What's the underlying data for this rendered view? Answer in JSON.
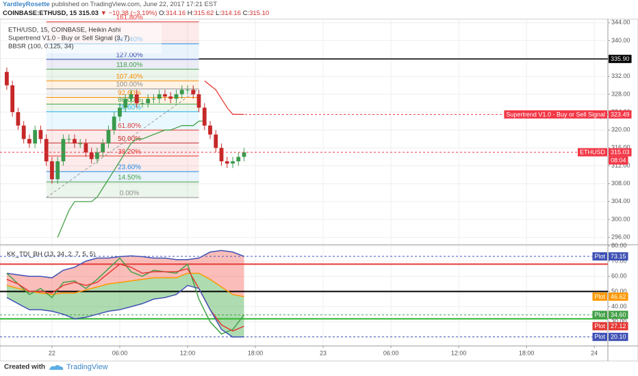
{
  "header": {
    "author": "YardleyRosette",
    "published": "published on TradingView.com, June 22, 2017 17:21 EST",
    "symbol": "COINBASE:ETHUSD, 15",
    "last": "315.03",
    "change": "▼ −10.38 (−3.19%)",
    "ohlc": [
      {
        "key": "O:",
        "value": "314.16"
      },
      {
        "key": "H:",
        "value": "315.62"
      },
      {
        "key": "L:",
        "value": "314.16"
      },
      {
        "key": "C:",
        "value": "315.10"
      }
    ]
  },
  "chart_data": [
    {
      "type": "candlestick",
      "legend": [
        "ETH/USD, 15, COINBASE, Heikin Ashi",
        "Supertrend V1.0 - Buy or Sell Signal (3, 7)",
        "BBSR (100, 0.125, 34)"
      ],
      "up_color": "#3a9a4c",
      "down_color": "#c62828",
      "x": [
        -4,
        -3.5,
        -3,
        -2.5,
        -2,
        -1.5,
        -1,
        -0.5,
        0,
        0.5,
        1,
        1.5,
        2,
        2.5,
        3,
        3.5,
        4,
        4.5,
        5,
        5.5,
        6,
        6.5,
        7,
        7.5,
        8,
        8.5,
        9,
        9.5,
        10,
        10.5,
        11,
        11.5,
        12,
        12.5,
        13,
        13.5,
        14,
        14.5,
        15,
        15.5,
        16,
        16.5,
        17
      ],
      "open": [
        333,
        330,
        324,
        321,
        318,
        317,
        320,
        318,
        313,
        309,
        313,
        318,
        318,
        317,
        317,
        315,
        313.5,
        315,
        317,
        320,
        323,
        325,
        327,
        328,
        326,
        326,
        327,
        327,
        328,
        327.5,
        327,
        328,
        329,
        329,
        328,
        325,
        321,
        319,
        316,
        313,
        312.5,
        313,
        314
      ],
      "high": [
        334,
        331,
        325,
        322,
        319,
        321,
        321,
        319,
        314,
        314,
        319,
        319,
        319,
        318,
        318,
        316,
        316,
        318,
        321,
        324,
        326,
        328,
        329,
        329,
        327,
        328,
        328,
        329,
        329,
        328.5,
        329,
        330,
        330,
        330,
        329,
        326,
        322,
        320,
        317,
        314,
        314,
        315,
        316
      ],
      "low": [
        329,
        323,
        320,
        317,
        316,
        316,
        317,
        312,
        308,
        308,
        312,
        317,
        316,
        316,
        314,
        312.5,
        312.5,
        314,
        316,
        319,
        322,
        324,
        326,
        325,
        325,
        325,
        326,
        326,
        326.5,
        326,
        326,
        327,
        328,
        327,
        324,
        320,
        318,
        315,
        312,
        311.5,
        311.5,
        312,
        313
      ],
      "close": [
        330,
        324,
        321,
        318,
        317,
        320,
        318,
        313,
        309,
        313,
        318,
        318,
        317,
        317,
        315,
        313.5,
        315,
        317,
        320,
        323,
        325,
        327,
        328,
        326,
        326,
        327,
        327,
        328,
        327.5,
        327,
        328,
        329,
        329,
        328,
        325,
        321,
        319,
        316,
        313,
        312.5,
        313,
        314,
        315
      ],
      "series": [
        {
          "color": "#43a047",
          "values": [
            null,
            null,
            null,
            null,
            null,
            null,
            null,
            null,
            null,
            296,
            299,
            302,
            304,
            304,
            304,
            304,
            305,
            307,
            309,
            311,
            313,
            315,
            317,
            318,
            318,
            318.5,
            319,
            319.5,
            320,
            320,
            320.5,
            321,
            321,
            321,
            322,
            322,
            null,
            null,
            null,
            null,
            null,
            null,
            null
          ]
        },
        {
          "color": "#e53935",
          "values": [
            null,
            null,
            null,
            null,
            null,
            null,
            null,
            null,
            null,
            null,
            null,
            null,
            null,
            null,
            null,
            null,
            null,
            null,
            null,
            null,
            null,
            null,
            null,
            null,
            null,
            null,
            null,
            null,
            null,
            null,
            null,
            null,
            null,
            null,
            null,
            331,
            330,
            329,
            327,
            325,
            323.5,
            323.5,
            323.49
          ]
        }
      ],
      "fib_range": [
        -0.5,
        13
      ],
      "fib_levels": [
        {
          "label": "161.80%",
          "value": 344.2,
          "color": "#e53935"
        },
        {
          "label": "141.40%",
          "value": 339.3,
          "color": "#1e88e5"
        },
        {
          "label": "127.00%",
          "value": 335.8,
          "color": "#3949ab"
        },
        {
          "label": "118.00%",
          "value": 333.6,
          "color": "#43a047"
        },
        {
          "label": "107.40%",
          "value": 331,
          "color": "#fb8c00"
        },
        {
          "label": "100.00%",
          "value": 329.2,
          "color": "#8d8d8d"
        },
        {
          "label": "92.60%",
          "value": 327.3,
          "color": "#fb8c00"
        },
        {
          "label": "86.00%",
          "value": 325.8,
          "color": "#43a047"
        },
        {
          "label": "78.60%",
          "value": 324.1,
          "color": "#29b6f6"
        },
        {
          "label": "61.80%",
          "value": 320,
          "color": "#e53935"
        },
        {
          "label": "50.00%",
          "value": 317.1,
          "color": "#c62828"
        },
        {
          "label": "38.20%",
          "value": 314.2,
          "color": "#e53935"
        },
        {
          "label": "23.60%",
          "value": 310.7,
          "color": "#1e88e5"
        },
        {
          "label": "14.50%",
          "value": 308.4,
          "color": "#43a047"
        },
        {
          "label": "0.00%",
          "value": 304.9,
          "color": "#8d8d8d"
        }
      ],
      "price_lines": [
        {
          "value": 335.9,
          "label": "335.90",
          "color": "#000000",
          "start": 13,
          "dashed": false
        },
        {
          "name": "Supertrend V1.0 - Buy or Sell Signal",
          "value": 323.49,
          "label": "323.49",
          "color": "#f23645",
          "start": 16,
          "dashed": true
        },
        {
          "name": "ETHUSD",
          "value": 315.03,
          "label": "315.03",
          "countdown": "08:04",
          "color": "#f23645",
          "dashed": true
        }
      ],
      "xlim": [
        -4.6,
        49.2
      ],
      "ylim": [
        294.5,
        344.8
      ],
      "yticks": [
        {
          "value": 296,
          "label": "296.00"
        },
        {
          "value": 300,
          "label": "300.00"
        },
        {
          "value": 304,
          "label": "304.00"
        },
        {
          "value": 308,
          "label": "308.00"
        },
        {
          "value": 312,
          "label": "312.00"
        },
        {
          "value": 316,
          "label": "316.00"
        },
        {
          "value": 320,
          "label": "320.00"
        },
        {
          "value": 324,
          "label": "324.00"
        },
        {
          "value": 328,
          "label": "328.00"
        },
        {
          "value": 332,
          "label": "332.00"
        },
        {
          "value": 336,
          "label": "336.00"
        },
        {
          "value": 340,
          "label": "340.00"
        },
        {
          "value": 344,
          "label": "344.00"
        }
      ],
      "grid": true
    },
    {
      "type": "line",
      "title": "KK_TDI_BH (13, 34, 2, 7, 5, 5)",
      "x": [
        -4,
        -3,
        -2,
        -1,
        0,
        1,
        2,
        3,
        4,
        5,
        6,
        7,
        8,
        9,
        10,
        11,
        12,
        13,
        14,
        15,
        16,
        17
      ],
      "series": [
        {
          "name": "Plot",
          "color": "#3f51b5",
          "last_line": true,
          "values": [
            62,
            61,
            60,
            60,
            59,
            64,
            66,
            70,
            72,
            72,
            73,
            73.5,
            73,
            72,
            72,
            71,
            71,
            72,
            76,
            77,
            76,
            73.15
          ],
          "value_labels": [
            null,
            null,
            null,
            null,
            null,
            null,
            null,
            null,
            null,
            null,
            null,
            null,
            null,
            null,
            null,
            null,
            null,
            null,
            null,
            null,
            null,
            "73.15"
          ]
        },
        {
          "name": "Plot",
          "color": "#ff9800",
          "last_line": false,
          "values": [
            54,
            52,
            50,
            49,
            48,
            49,
            49,
            51,
            53,
            55,
            56,
            57,
            58,
            59,
            59,
            59,
            62,
            62,
            58,
            53,
            48,
            46.62
          ],
          "value_labels": [
            null,
            null,
            null,
            null,
            null,
            null,
            null,
            null,
            null,
            null,
            null,
            null,
            null,
            null,
            null,
            null,
            null,
            null,
            null,
            null,
            null,
            "46.62"
          ]
        },
        {
          "name": "Plot",
          "color": "#43a047",
          "last_line": true,
          "values": [
            62,
            55,
            48,
            52,
            46,
            56,
            57,
            52,
            58,
            65,
            72,
            63,
            60,
            64,
            63,
            62,
            68,
            45,
            30,
            22,
            25,
            34.6
          ],
          "value_labels": [
            null,
            null,
            null,
            null,
            null,
            null,
            null,
            null,
            null,
            null,
            null,
            null,
            null,
            null,
            null,
            null,
            null,
            null,
            null,
            null,
            null,
            "34.60"
          ]
        },
        {
          "name": "Plot",
          "color": "#e53935",
          "last_line": false,
          "values": [
            58,
            55,
            50,
            50,
            49,
            54,
            56,
            54,
            56,
            62,
            68,
            66,
            62,
            63,
            63,
            63,
            65,
            52,
            38,
            28,
            24,
            27.12
          ],
          "value_labels": [
            null,
            null,
            null,
            null,
            null,
            null,
            null,
            null,
            null,
            null,
            null,
            null,
            null,
            null,
            null,
            null,
            null,
            null,
            null,
            null,
            null,
            "27.12"
          ]
        },
        {
          "name": "Plot",
          "color": "#3f51b5",
          "last_line": true,
          "values": [
            46,
            42,
            38,
            38,
            37,
            35,
            32,
            33,
            35,
            37,
            38,
            40,
            42,
            45,
            46,
            48,
            54,
            52,
            38,
            25,
            20,
            20.1
          ],
          "value_labels": [
            null,
            null,
            null,
            null,
            null,
            null,
            null,
            null,
            null,
            null,
            null,
            null,
            null,
            null,
            null,
            null,
            null,
            null,
            null,
            null,
            null,
            "20.10"
          ]
        }
      ],
      "levels": [
        {
          "value": 68,
          "color": "#e53935"
        },
        {
          "value": 50,
          "color": "#000000"
        },
        {
          "value": 32,
          "color": "#2eb82e"
        }
      ],
      "xlim": [
        -4.6,
        49.2
      ],
      "ylim": [
        14.6,
        79.9
      ],
      "yticks": [
        {
          "value": 20,
          "label": "20.00"
        },
        {
          "value": 30,
          "label": "30.00"
        },
        {
          "value": 40,
          "label": "40.00"
        },
        {
          "value": 50,
          "label": "50.00"
        },
        {
          "value": 60,
          "label": "60.00"
        },
        {
          "value": 70,
          "label": "70.00"
        },
        {
          "value": 80,
          "label": "80.00"
        }
      ],
      "xticks": [
        {
          "value": 0,
          "label": "22"
        },
        {
          "value": 6,
          "label": "06:00"
        },
        {
          "value": 12,
          "label": "12:00"
        },
        {
          "value": 18,
          "label": "18:00"
        },
        {
          "value": 24,
          "label": "23"
        },
        {
          "value": 30,
          "label": "06:00"
        },
        {
          "value": 36,
          "label": "12:00"
        },
        {
          "value": 42,
          "label": "18:00"
        },
        {
          "value": 48,
          "label": "24"
        }
      ],
      "grid": true
    }
  ],
  "footer": {
    "created_with": "Created with",
    "brand": "TradingView"
  }
}
